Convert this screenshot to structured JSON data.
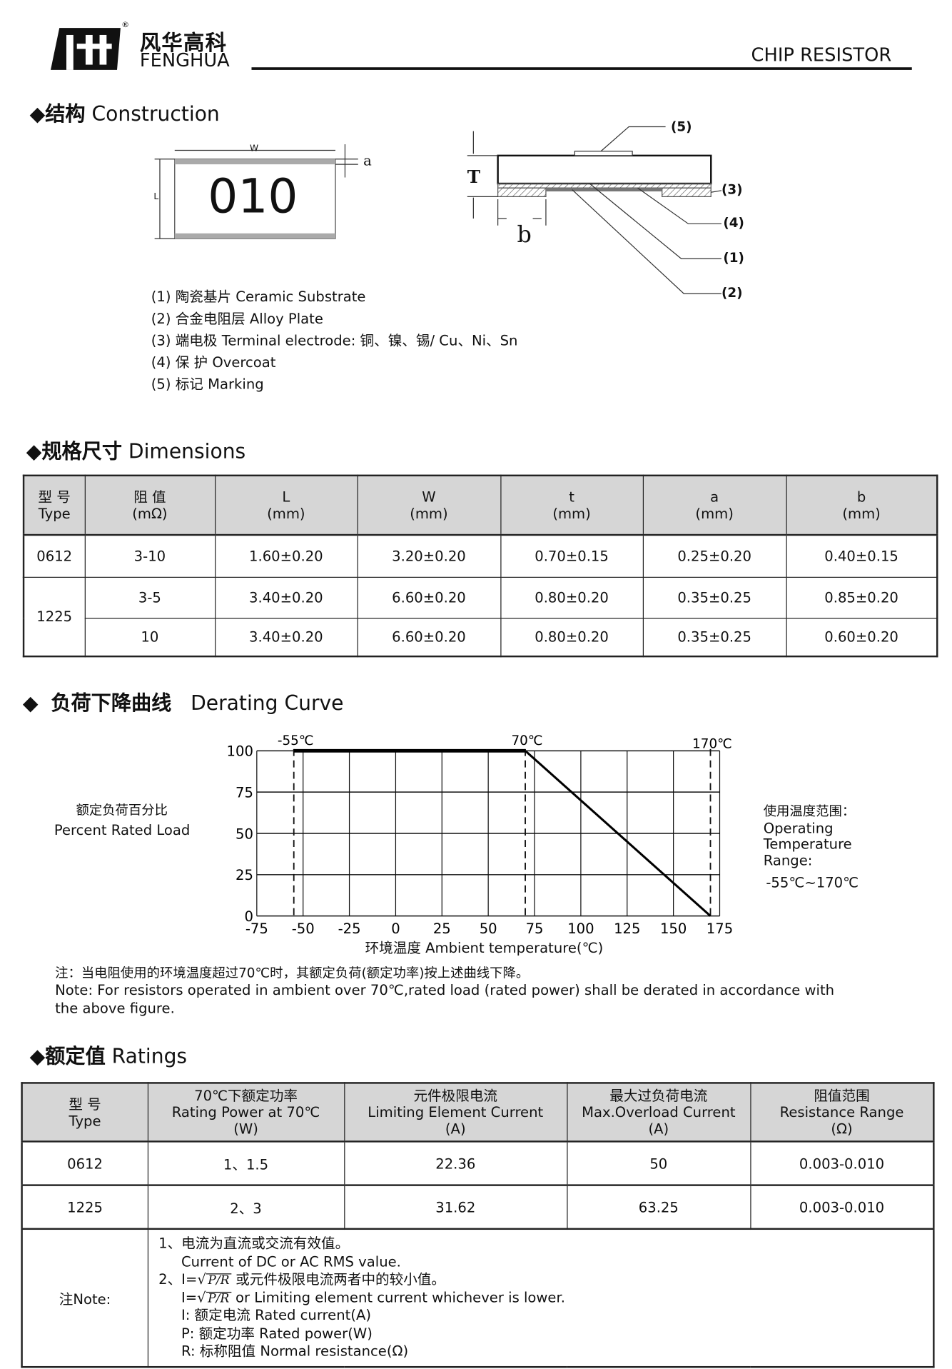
{
  "header": {
    "brand_cn": "风华高科",
    "brand_en": "FENGHUA",
    "registered": "®",
    "title": "CHIP RESISTOR"
  },
  "construction": {
    "heading_cn": "结构",
    "heading_en": "Construction",
    "marking_text": "010",
    "dim_labels": {
      "W": "W",
      "L": "L",
      "a": "a",
      "T": "T",
      "b": "b"
    },
    "callouts": [
      "(5)",
      "(3)",
      "(4)",
      "(1)",
      "(2)"
    ],
    "legend": [
      {
        "num": "(1)",
        "text": "陶瓷基片 Ceramic Substrate"
      },
      {
        "num": "(2)",
        "text": "合金电阻层 Alloy Plate"
      },
      {
        "num": "(3)",
        "text": "端电极 Terminal electrode: 铜、镍、锡/ Cu、Ni、Sn"
      },
      {
        "num": "(4)",
        "text": "保 护 Overcoat"
      },
      {
        "num": "(5)",
        "text": "标记 Marking"
      }
    ]
  },
  "dimensions": {
    "heading_cn": "规格尺寸",
    "heading_en": "Dimensions",
    "headers": [
      [
        "型 号",
        "Type"
      ],
      [
        "阻 值",
        "(mΩ)"
      ],
      [
        "L",
        "(mm)"
      ],
      [
        "W",
        "(mm)"
      ],
      [
        "t",
        "(mm)"
      ],
      [
        "a",
        "(mm)"
      ],
      [
        "b",
        "(mm)"
      ]
    ],
    "rows": [
      {
        "type": "0612",
        "r": "3-10",
        "L": "1.60±0.20",
        "W": "3.20±0.20",
        "t": "0.70±0.15",
        "a": "0.25±0.20",
        "b": "0.40±0.15"
      },
      {
        "type": "1225",
        "r": "3-5",
        "L": "3.40±0.20",
        "W": "6.60±0.20",
        "t": "0.80±0.20",
        "a": "0.35±0.25",
        "b": "0.85±0.20"
      },
      {
        "type": "",
        "r": "10",
        "L": "3.40±0.20",
        "W": "6.60±0.20",
        "t": "0.80±0.20",
        "a": "0.35±0.25",
        "b": "0.60±0.20"
      }
    ]
  },
  "derating": {
    "heading_cn": "负荷下降曲线",
    "heading_en": "Derating Curve",
    "ylabel_cn": "额定负荷百分比",
    "ylabel_en": "Percent Rated Load",
    "range_cn": "使用温度范围：",
    "range_en1": "Operating",
    "range_en2": "Temperature",
    "range_en3": "Range:",
    "range_value": "-55℃~170℃",
    "note_cn": "注：当电阻使用的环境温度超过70℃时，其额定负荷(额定功率)按上述曲线下降。",
    "note_en1": "Note:  For resistors operated in ambient over 70℃,rated  load (rated power) shall be derated in accordance with",
    "note_en2": "the above figure."
  },
  "chart_data": {
    "type": "line",
    "xlabel": "环境温度 Ambient temperature(℃)",
    "ylabel": "额定负荷百分比 Percent Rated Load",
    "xlim": [
      -75,
      175
    ],
    "ylim": [
      0,
      100
    ],
    "xticks": [
      "-75",
      "-50",
      "-25",
      "0",
      "25",
      "50",
      "75",
      "100",
      "125",
      "150",
      "175"
    ],
    "yticks": [
      "0",
      "25",
      "50",
      "75",
      "100"
    ],
    "grid": true,
    "series": [
      {
        "x": [
          -55,
          70,
          170
        ],
        "y": [
          100,
          100,
          0
        ]
      }
    ],
    "markers": [
      {
        "x": -55,
        "label": "-55℃"
      },
      {
        "x": 70,
        "label": "70℃"
      },
      {
        "x": 170,
        "label": "170℃"
      }
    ]
  },
  "ratings": {
    "heading_cn": "额定值",
    "heading_en": "Ratings",
    "headers": [
      [
        "型 号",
        "Type"
      ],
      [
        "70℃下额定功率",
        "Rating  Power at 70℃",
        "(W)"
      ],
      [
        "元件极限电流",
        "Limiting Element Current",
        "(A)"
      ],
      [
        "最大过负荷电流",
        "Max.Overload Current",
        "(A)"
      ],
      [
        "阻值范围",
        "Resistance Range",
        "(Ω)"
      ]
    ],
    "rows": [
      {
        "type": "0612",
        "power": "1、1.5",
        "limit": "22.36",
        "overload": "50",
        "range": "0.003-0.010"
      },
      {
        "type": "1225",
        "power": "2、3",
        "limit": "31.62",
        "overload": "63.25",
        "range": "0.003-0.010"
      }
    ],
    "note_label": "注Note:",
    "notes": {
      "n1_cn": "1、电流为直流或交流有效值。",
      "n1_en": "Current of DC or AC RMS value.",
      "n2_pre": "2、I=",
      "sqrt": "P/R",
      "n2_cn": "或元件极限电流两者中的较小值。",
      "n2_en_pre": "I=",
      "n2_en": "or Limiting element current  whichever is lower.",
      "i_def": "I:  额定电流 Rated current(A)",
      "p_def": "P:  额定功率  Rated power(W)",
      "r_def": "R:  标称阻值 Normal resistance(Ω)"
    }
  }
}
